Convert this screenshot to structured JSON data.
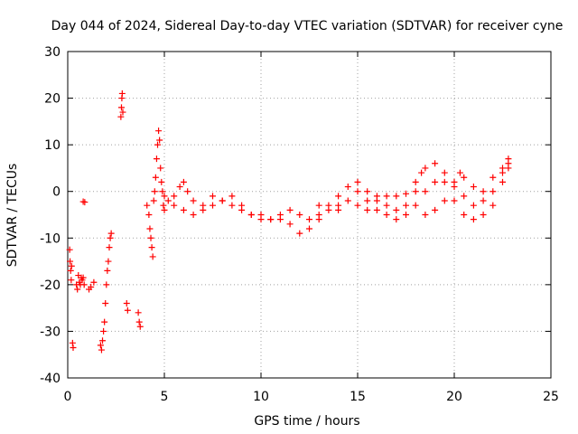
{
  "chart_data": {
    "type": "scatter",
    "title": "Day 044 of 2024, Sidereal Day-to-day VTEC variation (SDTVAR) for receiver cyne",
    "xlabel": "GPS time / hours",
    "ylabel": "SDTVAR / TECUs",
    "xlim": [
      0,
      25
    ],
    "ylim": [
      -40,
      30
    ],
    "xticks": [
      0,
      5,
      10,
      15,
      20,
      25
    ],
    "yticks": [
      30,
      20,
      10,
      0,
      -10,
      -20,
      -30,
      -40
    ],
    "xtick_labels": [
      "0",
      "5",
      "10",
      "15",
      "20",
      "25"
    ],
    "ytick_labels": [
      "30",
      "20",
      "10",
      "0",
      "-10",
      "-20",
      "-30",
      "-40"
    ],
    "grid": true,
    "marker": "+",
    "marker_color": "#ff0000",
    "series": [
      {
        "name": "SDTVAR",
        "points": [
          [
            0.1,
            -12.5
          ],
          [
            0.12,
            -15
          ],
          [
            0.15,
            -17
          ],
          [
            0.18,
            -19
          ],
          [
            0.2,
            -16
          ],
          [
            0.25,
            -32.5
          ],
          [
            0.28,
            -33.5
          ],
          [
            0.45,
            -20
          ],
          [
            0.5,
            -21
          ],
          [
            0.55,
            -18
          ],
          [
            0.6,
            -19.5
          ],
          [
            0.65,
            -20
          ],
          [
            0.7,
            -18.5
          ],
          [
            0.75,
            -19
          ],
          [
            0.8,
            -18.5
          ],
          [
            0.85,
            -20
          ],
          [
            0.8,
            -2.2
          ],
          [
            0.88,
            -2.3
          ],
          [
            1.1,
            -21
          ],
          [
            1.2,
            -20.5
          ],
          [
            1.35,
            -19.5
          ],
          [
            1.7,
            -33
          ],
          [
            1.75,
            -34
          ],
          [
            1.8,
            -32
          ],
          [
            1.85,
            -30
          ],
          [
            1.9,
            -28
          ],
          [
            1.95,
            -24
          ],
          [
            2.0,
            -20
          ],
          [
            2.05,
            -17
          ],
          [
            2.1,
            -15
          ],
          [
            2.15,
            -12
          ],
          [
            2.2,
            -10
          ],
          [
            2.25,
            -9
          ],
          [
            2.75,
            16
          ],
          [
            2.78,
            18
          ],
          [
            2.8,
            20
          ],
          [
            2.82,
            21
          ],
          [
            2.85,
            17
          ],
          [
            3.05,
            -24
          ],
          [
            3.1,
            -25.5
          ],
          [
            3.65,
            -26
          ],
          [
            3.7,
            -28
          ],
          [
            3.75,
            -29
          ],
          [
            4.1,
            -3
          ],
          [
            4.2,
            -5
          ],
          [
            4.25,
            -8
          ],
          [
            4.3,
            -10
          ],
          [
            4.35,
            -12
          ],
          [
            4.4,
            -14
          ],
          [
            4.45,
            -2
          ],
          [
            4.5,
            0
          ],
          [
            4.55,
            3
          ],
          [
            4.6,
            7
          ],
          [
            4.65,
            10
          ],
          [
            4.7,
            13
          ],
          [
            4.75,
            11
          ],
          [
            4.8,
            5
          ],
          [
            4.85,
            2
          ],
          [
            4.9,
            0
          ],
          [
            4.95,
            -3
          ],
          [
            5.0,
            -4
          ],
          [
            5.2,
            -2
          ],
          [
            5.5,
            -1
          ],
          [
            5.8,
            1
          ],
          [
            6.0,
            2
          ],
          [
            6.2,
            0
          ],
          [
            6.5,
            -2
          ],
          [
            7.0,
            -3
          ],
          [
            7.5,
            -1
          ],
          [
            8.0,
            -2
          ],
          [
            8.5,
            -3
          ],
          [
            9.0,
            -4
          ],
          [
            9.5,
            -5
          ],
          [
            10.0,
            -5
          ],
          [
            10.5,
            -6
          ],
          [
            11.0,
            -6
          ],
          [
            11.5,
            -7
          ],
          [
            12.0,
            -9
          ],
          [
            12.5,
            -8
          ],
          [
            13.0,
            -6
          ],
          [
            13.5,
            -4
          ],
          [
            14.0,
            -3
          ],
          [
            14.5,
            -2
          ],
          [
            15.0,
            0
          ],
          [
            15.5,
            -2
          ],
          [
            16.0,
            -4
          ],
          [
            16.5,
            -5
          ],
          [
            17.0,
            -6
          ],
          [
            17.5,
            -5
          ],
          [
            18.0,
            -3
          ],
          [
            18.5,
            0
          ],
          [
            19.0,
            2
          ],
          [
            19.5,
            4
          ],
          [
            20.0,
            2
          ],
          [
            20.5,
            -1
          ],
          [
            21.0,
            -3
          ],
          [
            21.5,
            -2
          ],
          [
            22.0,
            0
          ],
          [
            22.5,
            4
          ],
          [
            22.8,
            6
          ],
          [
            5.0,
            -1
          ],
          [
            5.5,
            -3
          ],
          [
            6.0,
            -4
          ],
          [
            6.5,
            -5
          ],
          [
            7.0,
            -4
          ],
          [
            7.5,
            -3
          ],
          [
            8.0,
            -2
          ],
          [
            8.5,
            -1
          ],
          [
            9.0,
            -3
          ],
          [
            9.5,
            -5
          ],
          [
            10.0,
            -6
          ],
          [
            10.5,
            -6
          ],
          [
            11.0,
            -5
          ],
          [
            11.5,
            -4
          ],
          [
            12.0,
            -5
          ],
          [
            12.5,
            -6
          ],
          [
            13.0,
            -5
          ],
          [
            13.5,
            -3
          ],
          [
            14.0,
            -1
          ],
          [
            14.5,
            1
          ],
          [
            15.0,
            2
          ],
          [
            15.5,
            0
          ],
          [
            16.0,
            -2
          ],
          [
            16.5,
            -3
          ],
          [
            17.0,
            -4
          ],
          [
            17.5,
            -3
          ],
          [
            18.0,
            0
          ],
          [
            18.5,
            5
          ],
          [
            19.0,
            6
          ],
          [
            19.5,
            2
          ],
          [
            20.0,
            -2
          ],
          [
            20.5,
            -5
          ],
          [
            21.0,
            -6
          ],
          [
            21.5,
            -5
          ],
          [
            22.0,
            -3
          ],
          [
            22.5,
            2
          ],
          [
            22.8,
            7
          ],
          [
            13.0,
            -3
          ],
          [
            14.0,
            -4
          ],
          [
            15.0,
            -3
          ],
          [
            15.5,
            -4
          ],
          [
            16.0,
            -1
          ],
          [
            16.5,
            -1
          ],
          [
            17.0,
            -1
          ],
          [
            17.5,
            -0.5
          ],
          [
            18.0,
            2
          ],
          [
            18.3,
            4
          ],
          [
            18.5,
            -5
          ],
          [
            19.0,
            -4
          ],
          [
            19.5,
            -2
          ],
          [
            20.0,
            1
          ],
          [
            20.3,
            4
          ],
          [
            20.5,
            3
          ],
          [
            21.0,
            1
          ],
          [
            21.5,
            0
          ],
          [
            22.0,
            3
          ],
          [
            22.5,
            5
          ],
          [
            22.8,
            5
          ]
        ]
      }
    ]
  }
}
